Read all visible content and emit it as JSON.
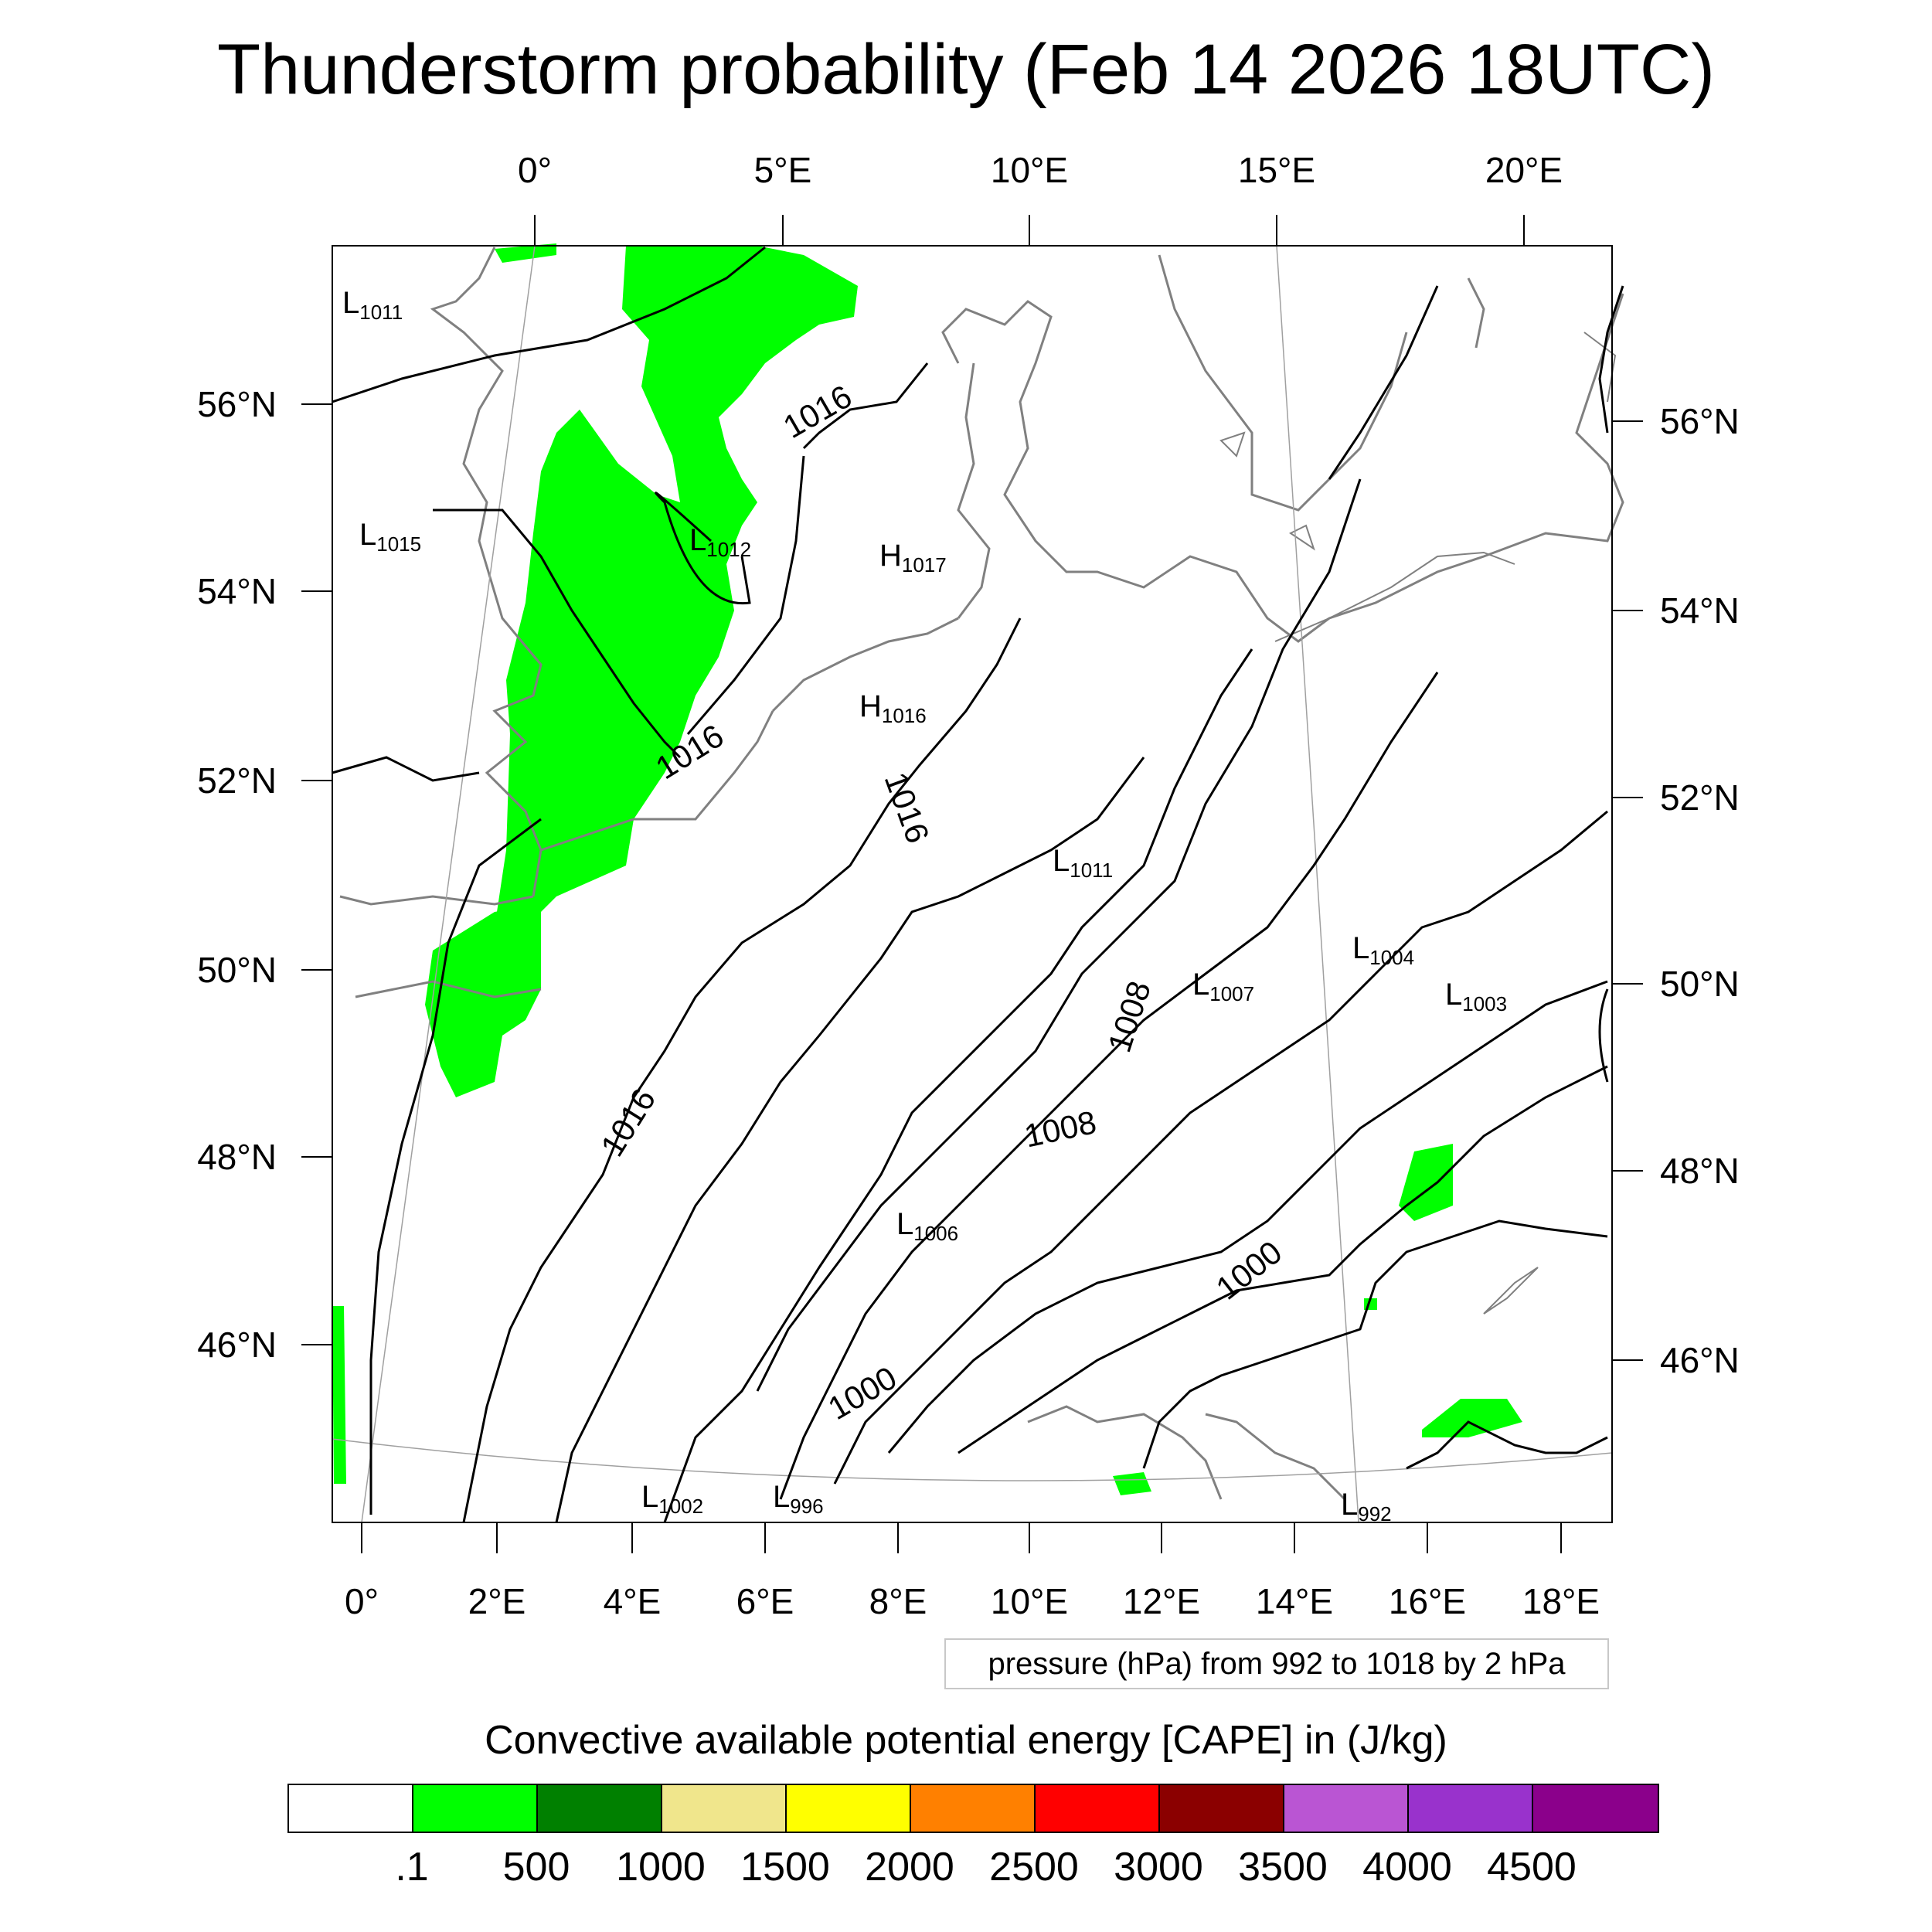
{
  "title": "Thunderstorm probability (Feb 14 2026 18UTC)",
  "top_lon_labels": [
    "0°",
    "5°E",
    "10°E",
    "15°E",
    "20°E"
  ],
  "bottom_lon_labels": [
    "0°",
    "2°E",
    "4°E",
    "6°E",
    "8°E",
    "10°E",
    "12°E",
    "14°E",
    "16°E",
    "18°E"
  ],
  "left_lat_labels": [
    "56°N",
    "54°N",
    "52°N",
    "50°N",
    "48°N",
    "46°N"
  ],
  "right_lat_labels": [
    "56°N",
    "54°N",
    "52°N",
    "50°N",
    "48°N",
    "46°N"
  ],
  "pressure_lows": [
    {
      "letter": "L",
      "value": "1011"
    },
    {
      "letter": "L",
      "value": "1015"
    },
    {
      "letter": "L",
      "value": "1012"
    },
    {
      "letter": "L",
      "value": "1011"
    },
    {
      "letter": "L",
      "value": "1004"
    },
    {
      "letter": "L",
      "value": "1007"
    },
    {
      "letter": "L",
      "value": "1003"
    },
    {
      "letter": "L",
      "value": "1006"
    },
    {
      "letter": "L",
      "value": "1002"
    },
    {
      "letter": "L",
      "value": "996"
    },
    {
      "letter": "L",
      "value": "992"
    }
  ],
  "pressure_highs": [
    {
      "letter": "H",
      "value": "1017"
    },
    {
      "letter": "H",
      "value": "1016"
    }
  ],
  "isobar_labels": [
    "1016",
    "1016",
    "1016",
    "1016",
    "1008",
    "1008",
    "1000",
    "1000"
  ],
  "pressure_note": "pressure (hPa) from 992 to 1018 by 2 hPa",
  "cape": {
    "title": "Convective available potential energy [CAPE] in (J/kg)",
    "colors": [
      "#ffffff",
      "#00ff00",
      "#008000",
      "#f0e68c",
      "#ffff00",
      "#ff8000",
      "#ff0000",
      "#8b0000",
      "#ba55d3",
      "#9932cc",
      "#8b008b"
    ],
    "labels": [
      ".1",
      "500",
      "1000",
      "1500",
      "2000",
      "2500",
      "3000",
      "3500",
      "4000",
      "4500"
    ]
  },
  "colors": {
    "cape_area": "#00ff00",
    "coastline": "#808080",
    "isobar": "#000000"
  }
}
